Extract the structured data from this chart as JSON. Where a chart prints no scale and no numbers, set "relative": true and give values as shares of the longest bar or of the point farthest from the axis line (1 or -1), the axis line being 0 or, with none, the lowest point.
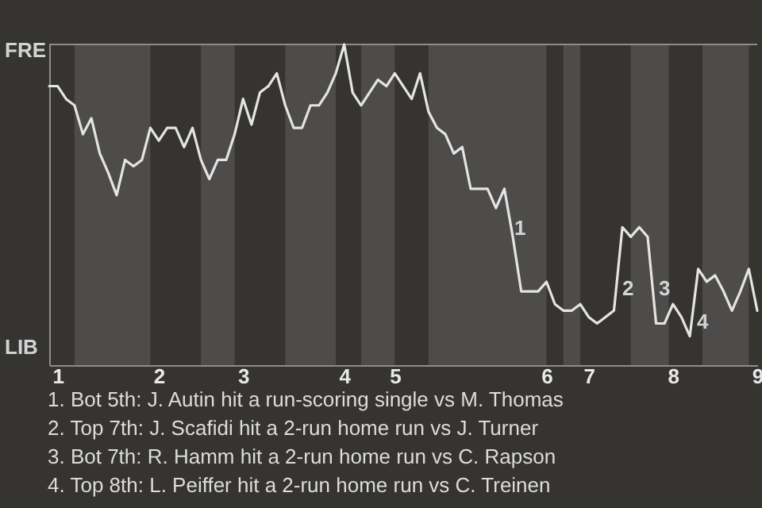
{
  "chart_data": {
    "type": "line",
    "relative": true,
    "categories": [
      null,
      "1",
      null,
      null,
      null,
      null,
      null,
      null,
      null,
      null,
      null,
      null,
      null,
      "2",
      null,
      null,
      null,
      null,
      null,
      null,
      null,
      null,
      null,
      "3",
      null,
      null,
      null,
      null,
      null,
      null,
      null,
      null,
      null,
      null,
      null,
      "4",
      null,
      null,
      null,
      null,
      null,
      "5",
      null,
      null,
      null,
      null,
      null,
      null,
      null,
      null,
      null,
      null,
      null,
      null,
      null,
      null,
      null,
      null,
      null,
      "6",
      null,
      null,
      null,
      null,
      "7",
      null,
      null,
      null,
      null,
      null,
      null,
      null,
      null,
      null,
      "8",
      null,
      null,
      null,
      null,
      null,
      null,
      null,
      null,
      null,
      "9"
    ],
    "series": [
      {
        "color": "#e4e4e4",
        "values": [
          0.87,
          0.87,
          0.83,
          0.81,
          0.72,
          0.77,
          0.66,
          0.6,
          0.53,
          0.64,
          0.62,
          0.64,
          0.74,
          0.7,
          0.74,
          0.74,
          0.68,
          0.74,
          0.64,
          0.58,
          0.64,
          0.64,
          0.72,
          0.83,
          0.75,
          0.85,
          0.87,
          0.91,
          0.81,
          0.74,
          0.74,
          0.81,
          0.81,
          0.85,
          0.91,
          1,
          0.85,
          0.81,
          0.85,
          0.89,
          0.87,
          0.91,
          0.87,
          0.83,
          0.91,
          0.79,
          0.74,
          0.72,
          0.66,
          0.68,
          0.55,
          0.55,
          0.55,
          0.49,
          0.55,
          0.4,
          0.23,
          0.23,
          0.23,
          0.26,
          0.19,
          0.17,
          0.17,
          0.19,
          0.15,
          0.13,
          0.15,
          0.17,
          0.43,
          0.4,
          0.43,
          0.4,
          0.13,
          0.13,
          0.19,
          0.15,
          0.09,
          0.3,
          0.26,
          0.28,
          0.23,
          0.17,
          0.23,
          0.3,
          0.17
        ]
      }
    ],
    "annotations": [
      "FRE",
      "LIB",
      "1",
      "2",
      "3",
      "4",
      "1. Bot 5th: J. Autin hit a run-scoring single vs M. Thomas",
      "2. Top 7th: J. Scafidi hit a 2-run home run vs J. Turner",
      "3. Bot 7th: R. Hamm hit a 2-run home run vs C. Rapson",
      "4. Top 8th: L. Peiffer hit a 2-run home run vs C. Treinen"
    ]
  }
}
